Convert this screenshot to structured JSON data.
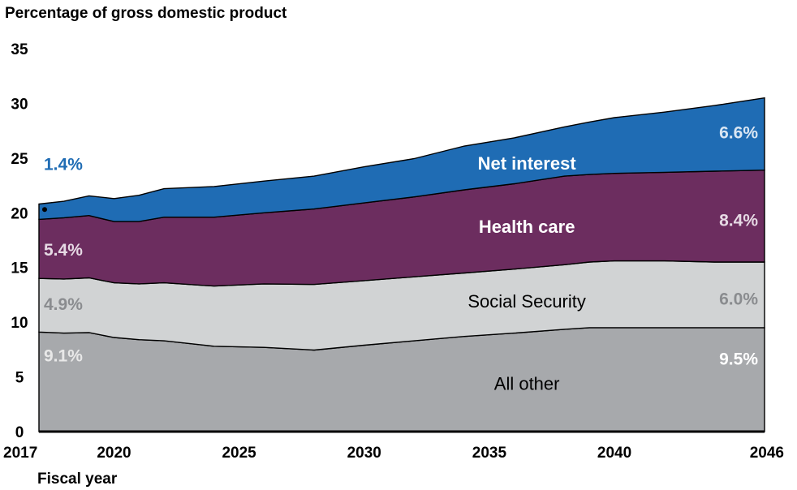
{
  "chart_data": {
    "type": "area",
    "ylabel": "Percentage of gross domestic product",
    "xlabel": "Fiscal year",
    "xlim": [
      2017,
      2046
    ],
    "ylim": [
      0,
      35
    ],
    "x_ticks": [
      "2017",
      "2020",
      "2025",
      "2030",
      "2035",
      "2040",
      "2046"
    ],
    "y_ticks": [
      "0",
      "5",
      "10",
      "15",
      "20",
      "25",
      "30",
      "35"
    ],
    "x": [
      2017,
      2018,
      2019,
      2020,
      2021,
      2022,
      2024,
      2026,
      2028,
      2030,
      2032,
      2034,
      2036,
      2038,
      2039,
      2040,
      2042,
      2044,
      2046
    ],
    "series": [
      {
        "name": "All other",
        "color": "#a7a9ac",
        "values": [
          9.1,
          9.0,
          9.05,
          8.6,
          8.4,
          8.3,
          7.8,
          7.7,
          7.45,
          7.9,
          8.3,
          8.7,
          9.0,
          9.35,
          9.5,
          9.5,
          9.5,
          9.5,
          9.5
        ]
      },
      {
        "name": "Social Security",
        "color": "#d1d3d4",
        "values": [
          4.9,
          4.95,
          5.0,
          5.0,
          5.1,
          5.3,
          5.5,
          5.8,
          6.0,
          5.9,
          5.85,
          5.8,
          5.85,
          5.9,
          6.0,
          6.1,
          6.1,
          6.0,
          6.0
        ]
      },
      {
        "name": "Health care",
        "color": "#6c2d5f",
        "values": [
          5.4,
          5.6,
          5.7,
          5.6,
          5.7,
          6.0,
          6.3,
          6.5,
          6.9,
          7.1,
          7.3,
          7.6,
          7.8,
          8.1,
          8.0,
          8.0,
          8.1,
          8.3,
          8.4
        ]
      },
      {
        "name": "Net interest",
        "color": "#1f6cb4",
        "values": [
          1.4,
          1.5,
          1.8,
          2.1,
          2.4,
          2.6,
          2.8,
          2.9,
          3.0,
          3.3,
          3.5,
          4.0,
          4.2,
          4.5,
          4.8,
          5.1,
          5.5,
          6.0,
          6.6
        ]
      }
    ],
    "series_labels": [
      {
        "text": "Net interest",
        "color": "#ffffff",
        "bold": true
      },
      {
        "text": "Health care",
        "color": "#ffffff",
        "bold": true
      },
      {
        "text": "Social Security",
        "color": "#000000",
        "bold": false
      },
      {
        "text": "All other",
        "color": "#000000",
        "bold": false
      }
    ],
    "start_labels": [
      {
        "text": "1.4%",
        "color": "#1f6cb4"
      },
      {
        "text": "5.4%",
        "color": "#e6d9e4"
      },
      {
        "text": "4.9%",
        "color": "#8a8c8f"
      },
      {
        "text": "9.1%",
        "color": "#e8e8e8"
      }
    ],
    "end_labels": [
      {
        "text": "6.6%",
        "color": "#d9e6f3"
      },
      {
        "text": "8.4%",
        "color": "#e6d9e4"
      },
      {
        "text": "6.0%",
        "color": "#8a8c8f"
      },
      {
        "text": "9.5%",
        "color": "#ffffff"
      }
    ],
    "grid": false,
    "legend": "none"
  }
}
